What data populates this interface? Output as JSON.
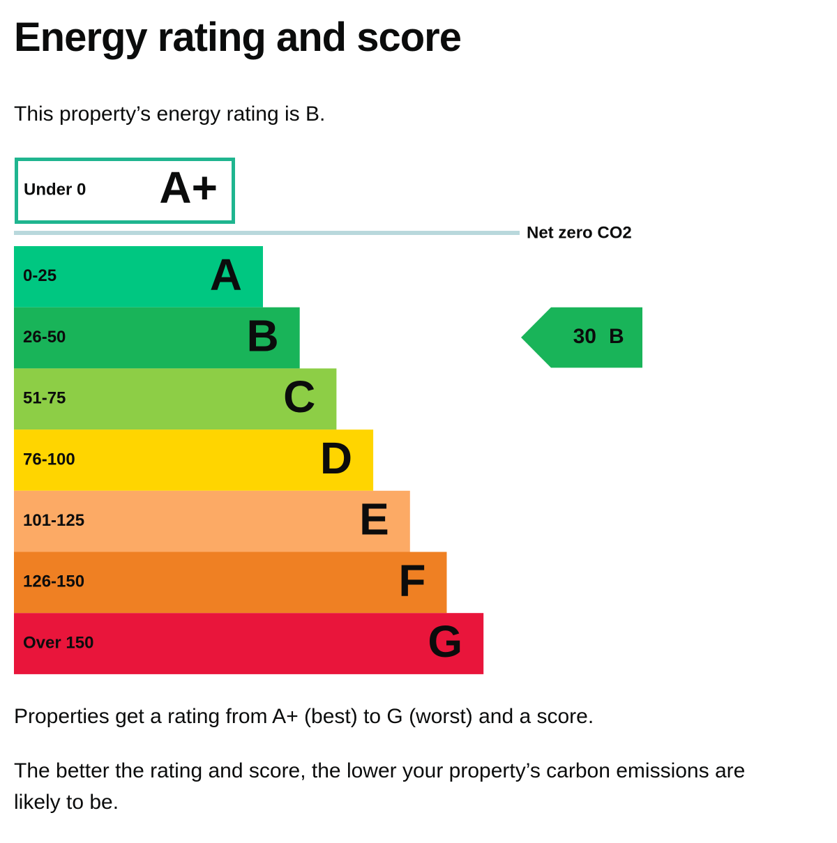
{
  "header": {
    "title": "Energy rating and score"
  },
  "intro": "This property’s energy rating is B.",
  "chart": {
    "top_band": {
      "range": "Under 0",
      "rating": "A+",
      "color": "#1fb58f"
    },
    "net_zero_label": "Net zero CO2",
    "bands": [
      {
        "range": "0-25",
        "rating": "A",
        "color": "#00c781"
      },
      {
        "range": "26-50",
        "rating": "B",
        "color": "#19b459"
      },
      {
        "range": "51-75",
        "rating": "C",
        "color": "#8dce46"
      },
      {
        "range": "76-100",
        "rating": "D",
        "color": "#ffd500"
      },
      {
        "range": "101-125",
        "rating": "E",
        "color": "#fcaa65"
      },
      {
        "range": "126-150",
        "rating": "F",
        "color": "#ef8023"
      },
      {
        "range": "Over 150",
        "rating": "G",
        "color": "#e9153b"
      }
    ],
    "current": {
      "score": "30",
      "rating": "B",
      "band": 1
    }
  },
  "paragraphs": [
    "Properties get a rating from A+ (best) to G (worst) and a score.",
    "The better the rating and score, the lower your property’s carbon emissions are likely to be."
  ]
}
